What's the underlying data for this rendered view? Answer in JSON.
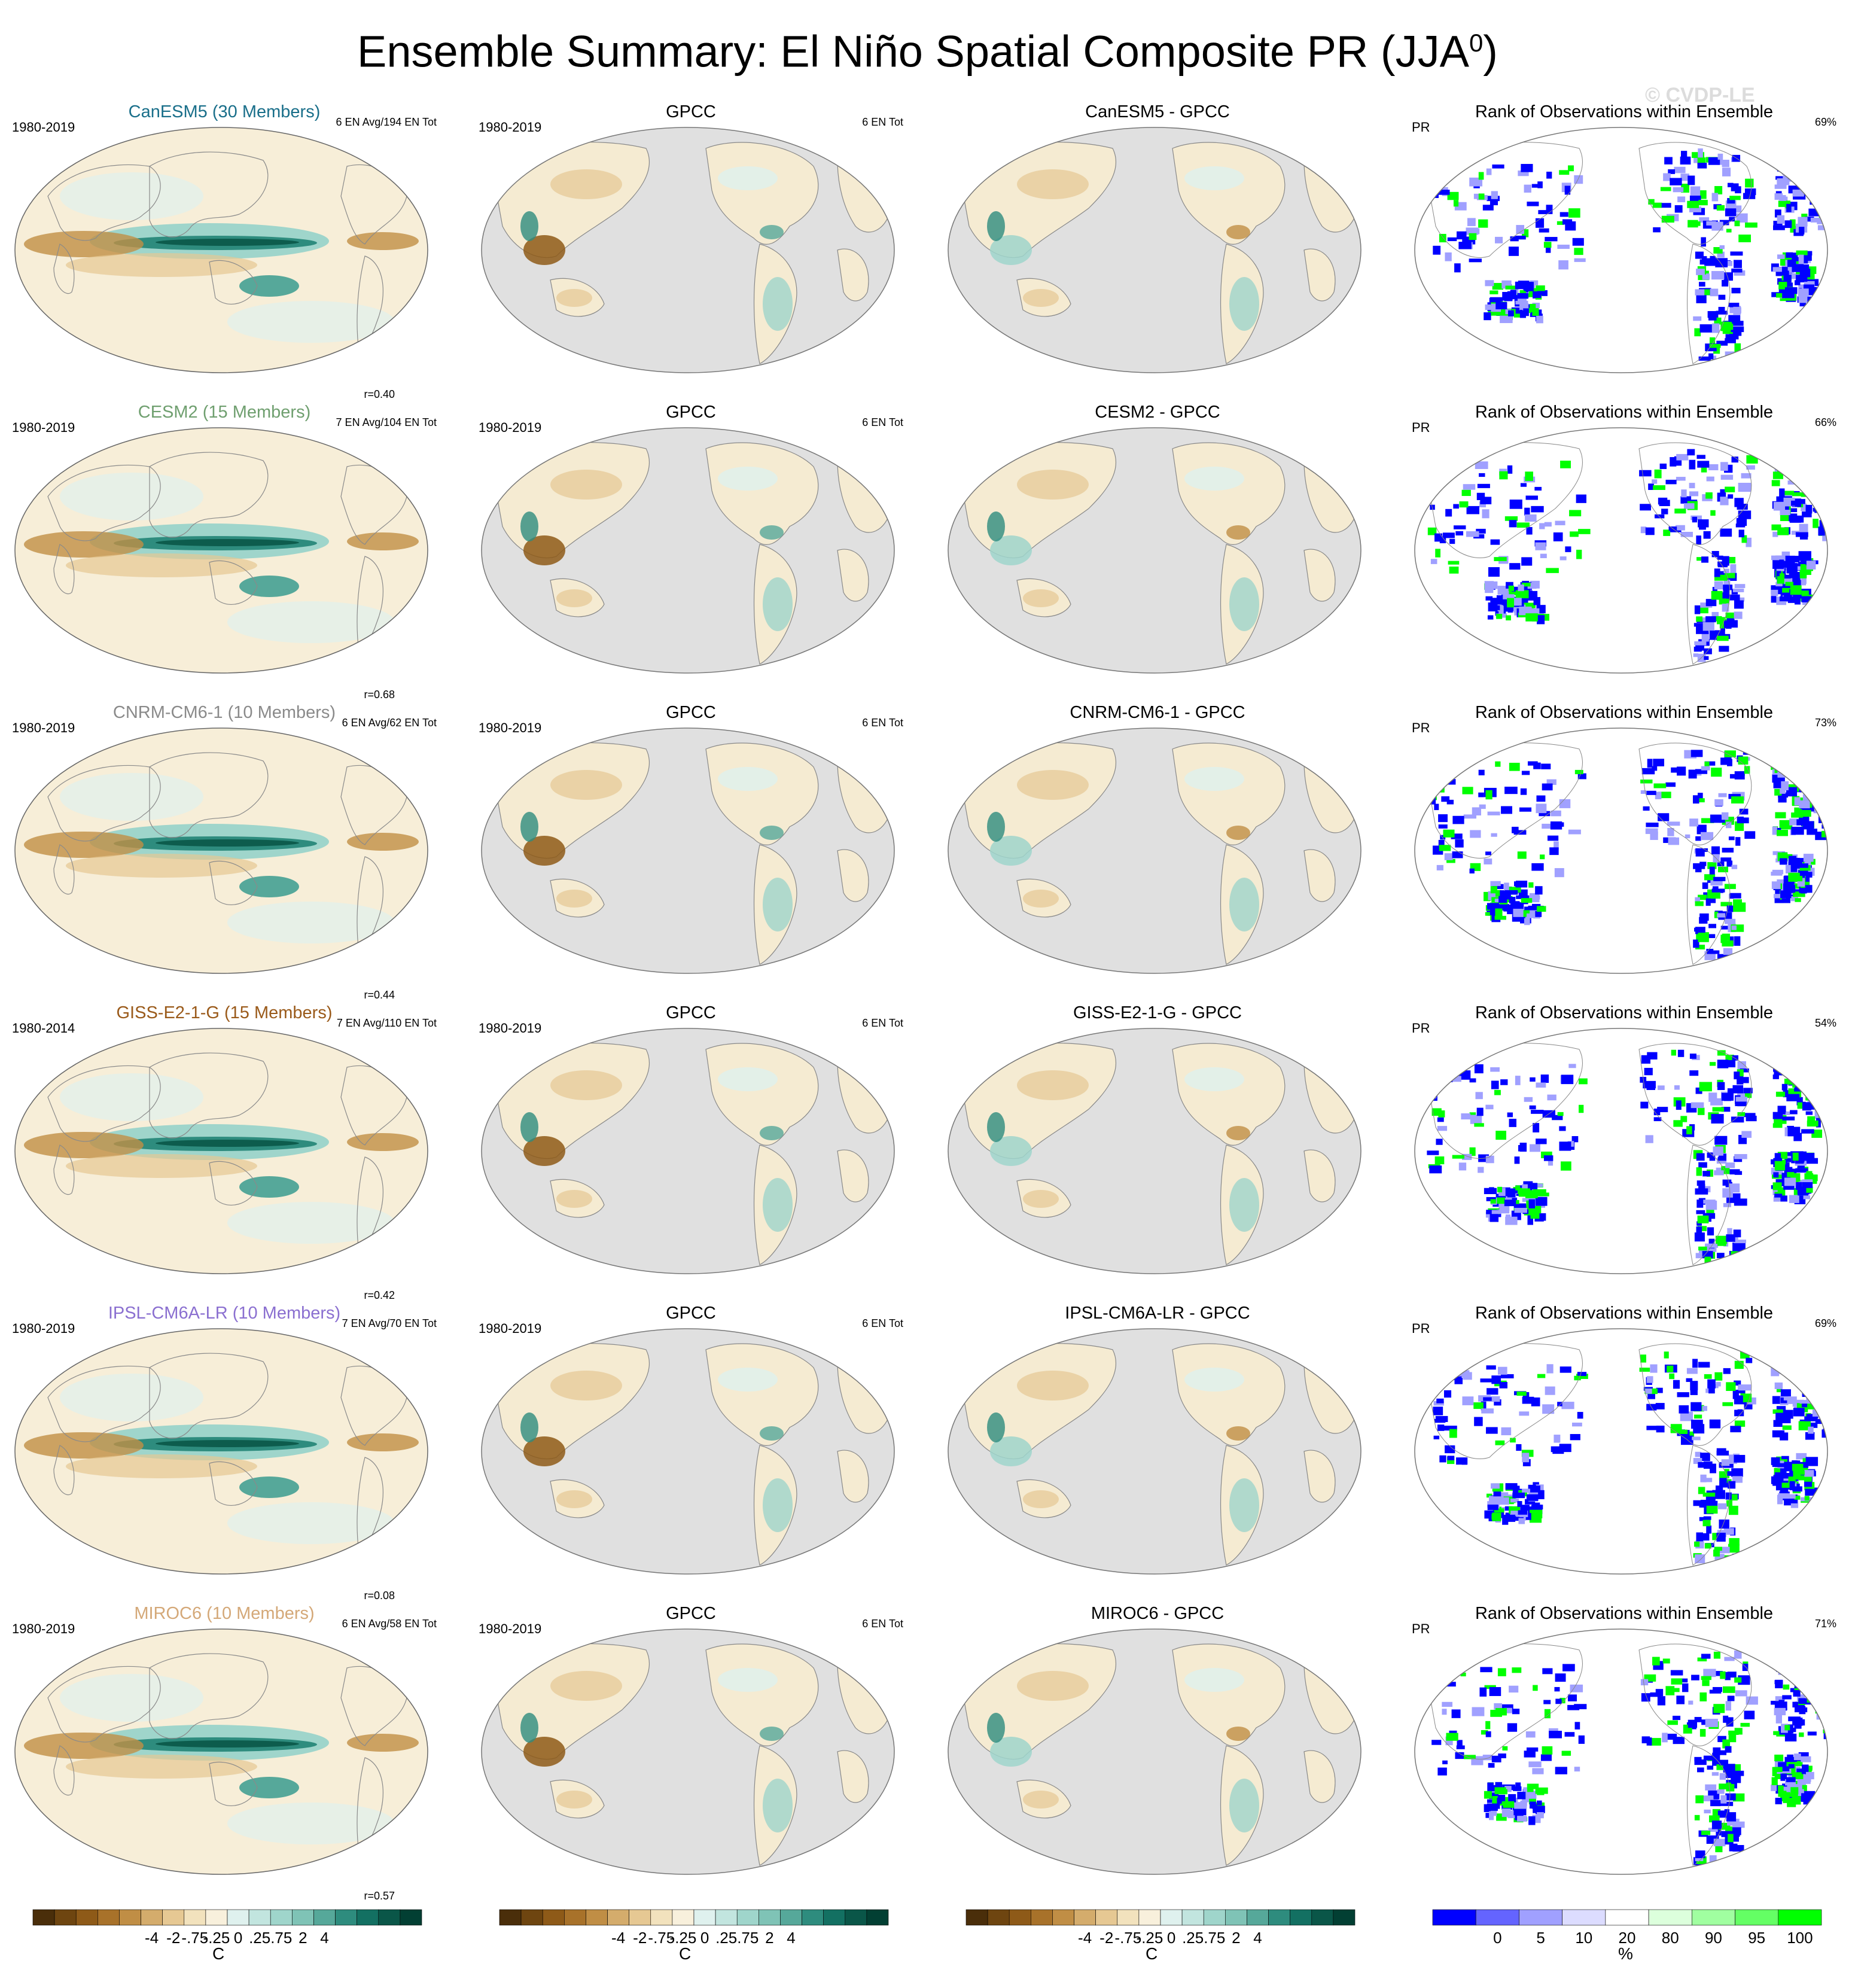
{
  "header": {
    "title": "Ensemble Summary: El Niño Spatial Composite PR (JJA",
    "title_sup": "0",
    "title_end": ")",
    "watermark": "© CVDP-LE"
  },
  "columns": {
    "obs_title": "GPCC",
    "rank_title": "Rank of Observations within Ensemble",
    "rank_var": "PR",
    "obs_count": "6 EN Tot"
  },
  "rows": [
    {
      "model": "CanESM5 (30 Members)",
      "model_color": "#1a6f8a",
      "period": "1980-2019",
      "en_info": "6 EN Avg/194 EN Tot",
      "corr": "r=0.40",
      "obs_period": "1980-2019",
      "diff_title": "CanESM5 - GPCC",
      "rank_pct": "69%"
    },
    {
      "model": "CESM2 (15 Members)",
      "model_color": "#6f9f6f",
      "period": "1980-2019",
      "en_info": "7 EN Avg/104 EN Tot",
      "corr": "r=0.68",
      "obs_period": "1980-2019",
      "diff_title": "CESM2 - GPCC",
      "rank_pct": "66%"
    },
    {
      "model": "CNRM-CM6-1 (10 Members)",
      "model_color": "#8a8a8a",
      "period": "1980-2019",
      "en_info": "6 EN Avg/62 EN Tot",
      "corr": "r=0.44",
      "obs_period": "1980-2019",
      "diff_title": "CNRM-CM6-1 - GPCC",
      "rank_pct": "73%"
    },
    {
      "model": "GISS-E2-1-G (15 Members)",
      "model_color": "#9a5a1a",
      "period": "1980-2014",
      "en_info": "7 EN Avg/110 EN Tot",
      "corr": "r=0.42",
      "obs_period": "1980-2019",
      "diff_title": "GISS-E2-1-G - GPCC",
      "rank_pct": "54%"
    },
    {
      "model": "IPSL-CM6A-LR (10 Members)",
      "model_color": "#8a6fd0",
      "period": "1980-2019",
      "en_info": "7 EN Avg/70 EN Tot",
      "corr": "r=0.08",
      "obs_period": "1980-2019",
      "diff_title": "IPSL-CM6A-LR - GPCC",
      "rank_pct": "69%"
    },
    {
      "model": "MIROC6 (10 Members)",
      "model_color": "#d4a878",
      "period": "1980-2019",
      "en_info": "6 EN Avg/58 EN Tot",
      "corr": "r=0.57",
      "obs_period": "1980-2019",
      "diff_title": "MIROC6 - GPCC",
      "rank_pct": "71%"
    }
  ],
  "colorbar_pr": {
    "labels": [
      "-4",
      "-2",
      "-.75",
      "-.25",
      "0",
      ".25",
      ".75",
      "2",
      "4"
    ],
    "unit": "C",
    "colors": [
      "#4a2e0a",
      "#6e4510",
      "#8e5a18",
      "#a8722a",
      "#c08e45",
      "#d4ac6c",
      "#e6c893",
      "#f2e2bd",
      "#f8f0dc",
      "#dff1ee",
      "#c2e5df",
      "#9fd5cb",
      "#7fc3b6",
      "#56a89a",
      "#2e8c7e",
      "#137062",
      "#0a5648",
      "#023f33"
    ]
  },
  "colorbar_rank": {
    "labels": [
      "0",
      "5",
      "10",
      "20",
      "80",
      "90",
      "95",
      "100"
    ],
    "unit": "%",
    "colors": [
      "#0000ff",
      "#6464ff",
      "#a0a0ff",
      "#dcdcff",
      "#ffffff",
      "#dcffdc",
      "#a0ffa0",
      "#64ff64",
      "#00ff00"
    ]
  }
}
